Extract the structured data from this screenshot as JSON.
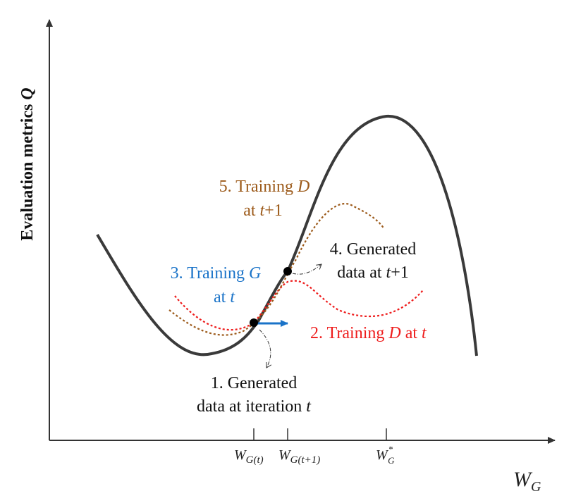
{
  "axes": {
    "y_label": "Evaluation metrics ",
    "y_label_var": "Q",
    "x_label_base": "W",
    "x_label_sub": "G"
  },
  "ticks": {
    "t1_base": "W",
    "t1_sub": "G(t)",
    "t2_base": "W",
    "t2_sub": "G(t+1)",
    "t3_base": "W",
    "t3_sub": "G",
    "t3_sup": "*"
  },
  "annotations": {
    "step1_line1": "1. Generated",
    "step1_line2_a": "data at iteration ",
    "step1_line2_b": "t",
    "step2_a": "2. Training ",
    "step2_b": "D",
    "step2_c": " at ",
    "step2_d": "t",
    "step3_line1_a": "3. Training ",
    "step3_line1_b": "G",
    "step3_line2_a": "at ",
    "step3_line2_b": "t",
    "step4_line1": "4. Generated",
    "step4_line2_a": "data at ",
    "step4_line2_b": "t",
    "step4_line2_c": "+1",
    "step5_line1_a": "5. Training ",
    "step5_line1_b": "D",
    "step5_line2_a": "at ",
    "step5_line2_b": "t",
    "step5_line2_c": "+1"
  },
  "colors": {
    "main_curve": "#3a3a3a",
    "training_d_t": "#ee1c1c",
    "training_g_t": "#1a73c8",
    "training_d_t1": "#9c5a1a",
    "text_dark": "#111111"
  }
}
